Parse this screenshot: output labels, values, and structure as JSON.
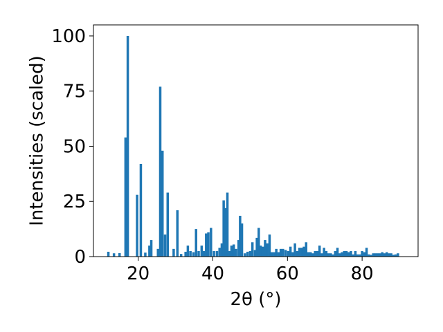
{
  "chart_data": {
    "type": "bar",
    "xlabel": "2θ (°)",
    "ylabel": "Intensities (scaled)",
    "xlim": [
      8,
      95
    ],
    "ylim": [
      0,
      105
    ],
    "x_ticks": [
      20,
      40,
      60,
      80
    ],
    "y_ticks": [
      0,
      25,
      50,
      75,
      100
    ],
    "grid": false,
    "bar_color": "#1f77b4",
    "bar_width": 0.65,
    "points": [
      {
        "x": 12.0,
        "y": 2.2
      },
      {
        "x": 13.5,
        "y": 1.5
      },
      {
        "x": 15.0,
        "y": 1.6
      },
      {
        "x": 16.6,
        "y": 54
      },
      {
        "x": 17.2,
        "y": 100
      },
      {
        "x": 19.7,
        "y": 28
      },
      {
        "x": 20.7,
        "y": 42
      },
      {
        "x": 21.9,
        "y": 1.8
      },
      {
        "x": 23.0,
        "y": 5
      },
      {
        "x": 23.5,
        "y": 7.5
      },
      {
        "x": 25.3,
        "y": 3.5
      },
      {
        "x": 25.9,
        "y": 77
      },
      {
        "x": 26.5,
        "y": 48
      },
      {
        "x": 27.2,
        "y": 10
      },
      {
        "x": 27.9,
        "y": 29
      },
      {
        "x": 29.5,
        "y": 3.5
      },
      {
        "x": 30.5,
        "y": 21
      },
      {
        "x": 31.5,
        "y": 1.2
      },
      {
        "x": 32.7,
        "y": 2.2
      },
      {
        "x": 33.3,
        "y": 5
      },
      {
        "x": 34.0,
        "y": 2.5
      },
      {
        "x": 34.8,
        "y": 2
      },
      {
        "x": 35.5,
        "y": 12.5
      },
      {
        "x": 36.2,
        "y": 2.5
      },
      {
        "x": 37.0,
        "y": 5
      },
      {
        "x": 37.6,
        "y": 2.5
      },
      {
        "x": 38.2,
        "y": 10.5
      },
      {
        "x": 38.8,
        "y": 11
      },
      {
        "x": 39.5,
        "y": 13
      },
      {
        "x": 40.3,
        "y": 2.5
      },
      {
        "x": 41.1,
        "y": 2.5
      },
      {
        "x": 41.8,
        "y": 4
      },
      {
        "x": 42.4,
        "y": 6
      },
      {
        "x": 42.9,
        "y": 25.5
      },
      {
        "x": 43.4,
        "y": 22
      },
      {
        "x": 43.9,
        "y": 29
      },
      {
        "x": 44.5,
        "y": 2.5
      },
      {
        "x": 45.0,
        "y": 5
      },
      {
        "x": 45.6,
        "y": 5.5
      },
      {
        "x": 46.2,
        "y": 3.5
      },
      {
        "x": 46.9,
        "y": 7.5
      },
      {
        "x": 47.3,
        "y": 18.5
      },
      {
        "x": 47.8,
        "y": 15
      },
      {
        "x": 48.6,
        "y": 1.5
      },
      {
        "x": 49.3,
        "y": 2.2
      },
      {
        "x": 50.0,
        "y": 2.5
      },
      {
        "x": 50.6,
        "y": 6.5
      },
      {
        "x": 51.3,
        "y": 3
      },
      {
        "x": 51.8,
        "y": 8.5
      },
      {
        "x": 52.3,
        "y": 13
      },
      {
        "x": 52.8,
        "y": 5
      },
      {
        "x": 53.4,
        "y": 4.5
      },
      {
        "x": 54.0,
        "y": 7.5
      },
      {
        "x": 54.6,
        "y": 6
      },
      {
        "x": 55.2,
        "y": 10
      },
      {
        "x": 55.8,
        "y": 2
      },
      {
        "x": 56.4,
        "y": 2
      },
      {
        "x": 57.0,
        "y": 3.5
      },
      {
        "x": 57.6,
        "y": 2
      },
      {
        "x": 58.2,
        "y": 3.5
      },
      {
        "x": 58.8,
        "y": 3.5
      },
      {
        "x": 59.5,
        "y": 3
      },
      {
        "x": 60.2,
        "y": 2.5
      },
      {
        "x": 60.8,
        "y": 4.5
      },
      {
        "x": 61.4,
        "y": 2
      },
      {
        "x": 62.0,
        "y": 6
      },
      {
        "x": 62.6,
        "y": 2.5
      },
      {
        "x": 63.2,
        "y": 4
      },
      {
        "x": 63.8,
        "y": 4
      },
      {
        "x": 64.4,
        "y": 4.5
      },
      {
        "x": 65.0,
        "y": 6.5
      },
      {
        "x": 65.6,
        "y": 2
      },
      {
        "x": 66.2,
        "y": 2
      },
      {
        "x": 66.8,
        "y": 1.5
      },
      {
        "x": 67.4,
        "y": 2.5
      },
      {
        "x": 68.0,
        "y": 2.5
      },
      {
        "x": 68.6,
        "y": 5
      },
      {
        "x": 69.2,
        "y": 1.5
      },
      {
        "x": 69.8,
        "y": 4
      },
      {
        "x": 70.4,
        "y": 2.5
      },
      {
        "x": 71.0,
        "y": 1.5
      },
      {
        "x": 71.6,
        "y": 1.5
      },
      {
        "x": 72.2,
        "y": 1
      },
      {
        "x": 72.8,
        "y": 2.5
      },
      {
        "x": 73.4,
        "y": 4
      },
      {
        "x": 74.0,
        "y": 1.5
      },
      {
        "x": 74.6,
        "y": 2
      },
      {
        "x": 75.2,
        "y": 2.5
      },
      {
        "x": 75.8,
        "y": 2.5
      },
      {
        "x": 76.4,
        "y": 2
      },
      {
        "x": 77.0,
        "y": 2.5
      },
      {
        "x": 77.6,
        "y": 1
      },
      {
        "x": 78.2,
        "y": 2.5
      },
      {
        "x": 78.8,
        "y": 1
      },
      {
        "x": 79.4,
        "y": 1
      },
      {
        "x": 80.0,
        "y": 2.5
      },
      {
        "x": 80.6,
        "y": 2
      },
      {
        "x": 81.2,
        "y": 4
      },
      {
        "x": 81.8,
        "y": 1
      },
      {
        "x": 82.4,
        "y": 0.8
      },
      {
        "x": 83.0,
        "y": 1.5
      },
      {
        "x": 83.6,
        "y": 1.5
      },
      {
        "x": 84.2,
        "y": 1.5
      },
      {
        "x": 84.8,
        "y": 1.5
      },
      {
        "x": 85.4,
        "y": 2
      },
      {
        "x": 86.0,
        "y": 1.5
      },
      {
        "x": 86.6,
        "y": 2
      },
      {
        "x": 87.2,
        "y": 1.5
      },
      {
        "x": 87.8,
        "y": 1.5
      },
      {
        "x": 88.4,
        "y": 0.8
      },
      {
        "x": 89.0,
        "y": 1
      },
      {
        "x": 89.6,
        "y": 1.5
      }
    ]
  }
}
